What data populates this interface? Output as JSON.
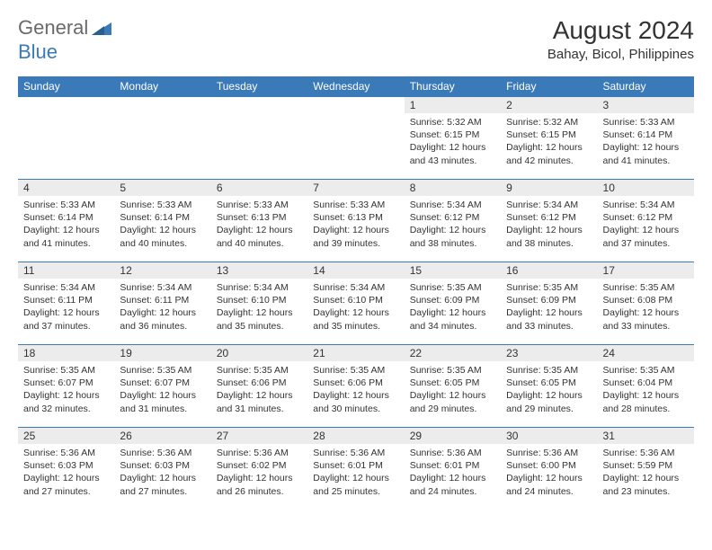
{
  "logo": {
    "text1": "General",
    "text2": "Blue"
  },
  "title": "August 2024",
  "location": "Bahay, Bicol, Philippines",
  "colors": {
    "header_bg": "#3a7ab8",
    "header_text": "#ffffff",
    "daynum_bg": "#ececec",
    "text": "#333333",
    "logo_gray": "#6a6a6a",
    "logo_blue": "#3a7ab8",
    "page_bg": "#ffffff"
  },
  "day_headers": [
    "Sunday",
    "Monday",
    "Tuesday",
    "Wednesday",
    "Thursday",
    "Friday",
    "Saturday"
  ],
  "weeks": [
    [
      null,
      null,
      null,
      null,
      {
        "n": "1",
        "sr": "5:32 AM",
        "ss": "6:15 PM",
        "dl": "12 hours and 43 minutes."
      },
      {
        "n": "2",
        "sr": "5:32 AM",
        "ss": "6:15 PM",
        "dl": "12 hours and 42 minutes."
      },
      {
        "n": "3",
        "sr": "5:33 AM",
        "ss": "6:14 PM",
        "dl": "12 hours and 41 minutes."
      }
    ],
    [
      {
        "n": "4",
        "sr": "5:33 AM",
        "ss": "6:14 PM",
        "dl": "12 hours and 41 minutes."
      },
      {
        "n": "5",
        "sr": "5:33 AM",
        "ss": "6:14 PM",
        "dl": "12 hours and 40 minutes."
      },
      {
        "n": "6",
        "sr": "5:33 AM",
        "ss": "6:13 PM",
        "dl": "12 hours and 40 minutes."
      },
      {
        "n": "7",
        "sr": "5:33 AM",
        "ss": "6:13 PM",
        "dl": "12 hours and 39 minutes."
      },
      {
        "n": "8",
        "sr": "5:34 AM",
        "ss": "6:12 PM",
        "dl": "12 hours and 38 minutes."
      },
      {
        "n": "9",
        "sr": "5:34 AM",
        "ss": "6:12 PM",
        "dl": "12 hours and 38 minutes."
      },
      {
        "n": "10",
        "sr": "5:34 AM",
        "ss": "6:12 PM",
        "dl": "12 hours and 37 minutes."
      }
    ],
    [
      {
        "n": "11",
        "sr": "5:34 AM",
        "ss": "6:11 PM",
        "dl": "12 hours and 37 minutes."
      },
      {
        "n": "12",
        "sr": "5:34 AM",
        "ss": "6:11 PM",
        "dl": "12 hours and 36 minutes."
      },
      {
        "n": "13",
        "sr": "5:34 AM",
        "ss": "6:10 PM",
        "dl": "12 hours and 35 minutes."
      },
      {
        "n": "14",
        "sr": "5:34 AM",
        "ss": "6:10 PM",
        "dl": "12 hours and 35 minutes."
      },
      {
        "n": "15",
        "sr": "5:35 AM",
        "ss": "6:09 PM",
        "dl": "12 hours and 34 minutes."
      },
      {
        "n": "16",
        "sr": "5:35 AM",
        "ss": "6:09 PM",
        "dl": "12 hours and 33 minutes."
      },
      {
        "n": "17",
        "sr": "5:35 AM",
        "ss": "6:08 PM",
        "dl": "12 hours and 33 minutes."
      }
    ],
    [
      {
        "n": "18",
        "sr": "5:35 AM",
        "ss": "6:07 PM",
        "dl": "12 hours and 32 minutes."
      },
      {
        "n": "19",
        "sr": "5:35 AM",
        "ss": "6:07 PM",
        "dl": "12 hours and 31 minutes."
      },
      {
        "n": "20",
        "sr": "5:35 AM",
        "ss": "6:06 PM",
        "dl": "12 hours and 31 minutes."
      },
      {
        "n": "21",
        "sr": "5:35 AM",
        "ss": "6:06 PM",
        "dl": "12 hours and 30 minutes."
      },
      {
        "n": "22",
        "sr": "5:35 AM",
        "ss": "6:05 PM",
        "dl": "12 hours and 29 minutes."
      },
      {
        "n": "23",
        "sr": "5:35 AM",
        "ss": "6:05 PM",
        "dl": "12 hours and 29 minutes."
      },
      {
        "n": "24",
        "sr": "5:35 AM",
        "ss": "6:04 PM",
        "dl": "12 hours and 28 minutes."
      }
    ],
    [
      {
        "n": "25",
        "sr": "5:36 AM",
        "ss": "6:03 PM",
        "dl": "12 hours and 27 minutes."
      },
      {
        "n": "26",
        "sr": "5:36 AM",
        "ss": "6:03 PM",
        "dl": "12 hours and 27 minutes."
      },
      {
        "n": "27",
        "sr": "5:36 AM",
        "ss": "6:02 PM",
        "dl": "12 hours and 26 minutes."
      },
      {
        "n": "28",
        "sr": "5:36 AM",
        "ss": "6:01 PM",
        "dl": "12 hours and 25 minutes."
      },
      {
        "n": "29",
        "sr": "5:36 AM",
        "ss": "6:01 PM",
        "dl": "12 hours and 24 minutes."
      },
      {
        "n": "30",
        "sr": "5:36 AM",
        "ss": "6:00 PM",
        "dl": "12 hours and 24 minutes."
      },
      {
        "n": "31",
        "sr": "5:36 AM",
        "ss": "5:59 PM",
        "dl": "12 hours and 23 minutes."
      }
    ]
  ],
  "labels": {
    "sunrise": "Sunrise:",
    "sunset": "Sunset:",
    "daylight": "Daylight:"
  }
}
